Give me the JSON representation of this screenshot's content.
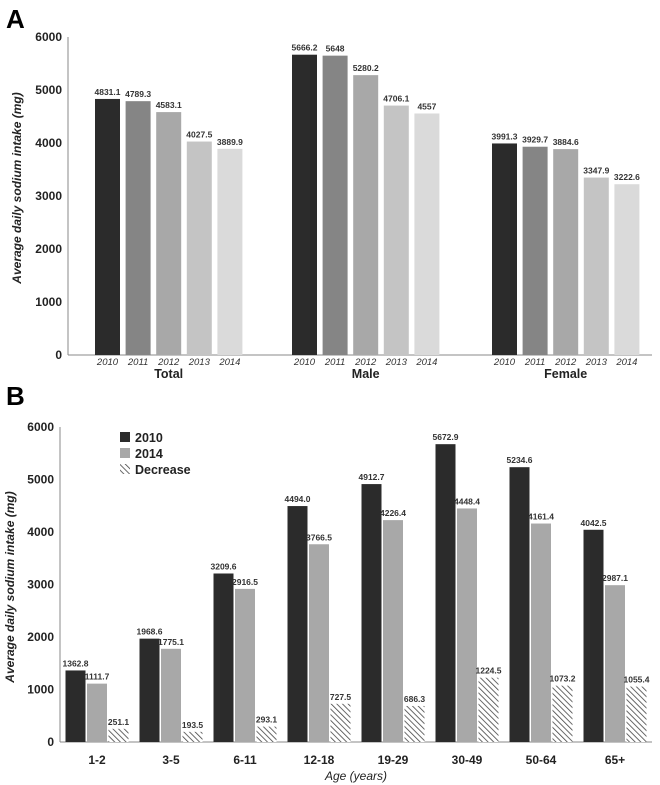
{
  "chart_data": [
    {
      "panel": "A",
      "type": "bar",
      "title": "",
      "xlabel": "",
      "ylabel": "Average daily sodium intake (mg)",
      "ylim": [
        0,
        6000
      ],
      "yticks": [
        "0",
        "1000",
        "2000",
        "3000",
        "4000",
        "5000",
        "6000"
      ],
      "grid": false,
      "groups": [
        "Total",
        "Male",
        "Female"
      ],
      "series_names": [
        "2010",
        "2011",
        "2012",
        "2013",
        "2014"
      ],
      "colors": [
        "#2b2b2b",
        "#858585",
        "#a8a8a8",
        "#c4c4c4",
        "#dadada"
      ],
      "values": [
        [
          4831.1,
          4789.3,
          4583.1,
          4027.5,
          3889.9
        ],
        [
          5666.2,
          5648,
          5280.2,
          4706.1,
          4557
        ],
        [
          3991.3,
          3929.7,
          3884.6,
          3347.9,
          3222.6
        ]
      ],
      "labels": [
        [
          "4831.1",
          "4789.3",
          "4583.1",
          "4027.5",
          "3889.9"
        ],
        [
          "5666.2",
          "5648",
          "5280.2",
          "4706.1",
          "4557"
        ],
        [
          "3991.3",
          "3929.7",
          "3884.6",
          "3347.9",
          "3222.6"
        ]
      ]
    },
    {
      "panel": "B",
      "type": "bar",
      "title": "",
      "xlabel": "Age (years)",
      "ylabel": "Average daily sodium intake (mg)",
      "ylim": [
        0,
        6000
      ],
      "yticks": [
        "0",
        "1000",
        "2000",
        "3000",
        "4000",
        "5000",
        "6000"
      ],
      "grid": false,
      "legend": "top-left",
      "categories": [
        "1-2",
        "3-5",
        "6-11",
        "12-18",
        "19-29",
        "30-49",
        "50-64",
        "65+"
      ],
      "series": [
        {
          "name": "2010",
          "color": "#2b2b2b",
          "pattern": "solid",
          "values": [
            1362.8,
            1968.6,
            3209.6,
            4494.0,
            4912.7,
            5672.9,
            5234.6,
            4042.5
          ],
          "labels": [
            "1362.8",
            "1968.6",
            "3209.6",
            "4494.0",
            "4912.7",
            "5672.9",
            "5234.6",
            "4042.5"
          ]
        },
        {
          "name": "2014",
          "color": "#a8a8a8",
          "pattern": "solid",
          "values": [
            1111.7,
            1775.1,
            2916.5,
            3766.5,
            4226.4,
            4448.4,
            4161.4,
            2987.1
          ],
          "labels": [
            "1111.7",
            "1775.1",
            "2916.5",
            "3766.5",
            "4226.4",
            "4448.4",
            "4161.4",
            "2987.1"
          ]
        },
        {
          "name": "Decrease",
          "color": "#555555",
          "pattern": "hatched",
          "values": [
            251.1,
            193.5,
            293.1,
            727.5,
            686.3,
            1224.5,
            1073.2,
            1055.4
          ],
          "labels": [
            "251.1",
            "193.5",
            "293.1",
            "727.5",
            "686.3",
            "1224.5",
            "1073.2",
            "1055.4"
          ]
        }
      ]
    }
  ]
}
